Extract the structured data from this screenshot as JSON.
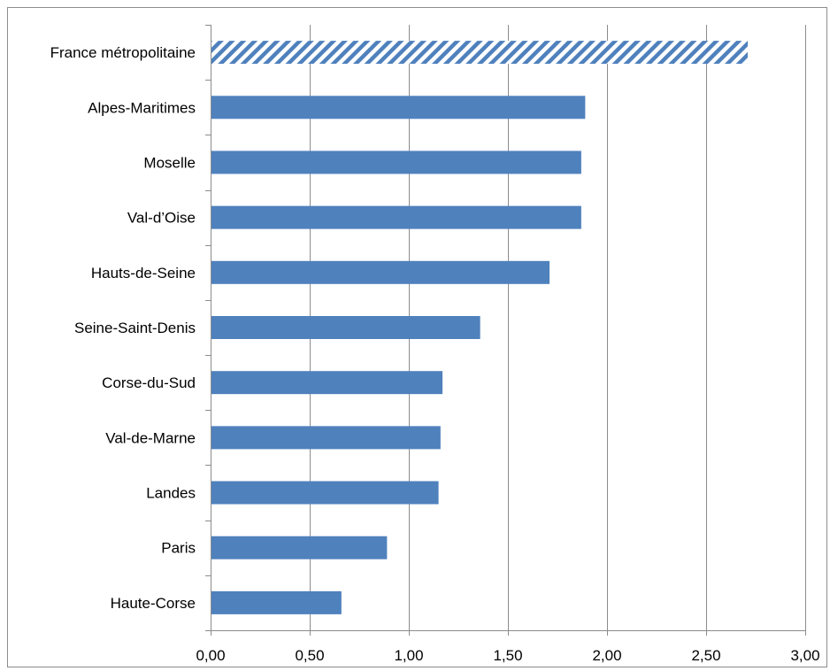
{
  "chart_data": {
    "type": "bar",
    "orientation": "horizontal",
    "categories": [
      "France métropolitaine",
      "Alpes-Maritimes",
      "Moselle",
      "Val-d’Oise",
      "Hauts-de-Seine",
      "Seine-Saint-Denis",
      "Corse-du-Sud",
      "Val-de-Marne",
      "Landes",
      "Paris",
      "Haute-Corse"
    ],
    "values": [
      2.71,
      1.89,
      1.87,
      1.87,
      1.71,
      1.36,
      1.17,
      1.16,
      1.15,
      0.89,
      0.66
    ],
    "highlighted_category": "France métropolitaine",
    "xlim": [
      0,
      3
    ],
    "x_ticks": [
      "0,00",
      "0,50",
      "1,00",
      "1,50",
      "2,00",
      "2,50",
      "3,00"
    ],
    "grid": "vertical",
    "legend": "none",
    "title": "",
    "xlabel": "",
    "ylabel": ""
  },
  "colors": {
    "bar": "#4f81bd",
    "highlight_pattern": "#4f81bd",
    "grid": "#8c8c8c",
    "axis": "#8c8c8c",
    "frame": "#8c8c8c"
  }
}
